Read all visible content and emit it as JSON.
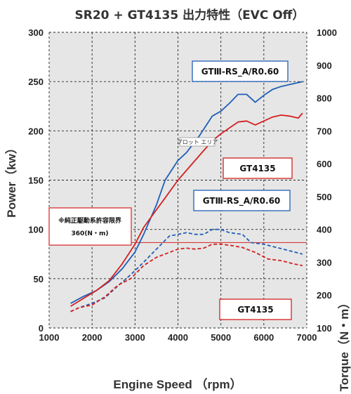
{
  "chart_data": {
    "type": "line",
    "title": "SR20 + GT4135 出力特性（EVC Off）",
    "xlabel": "Engine Speed （rpm）",
    "ylabel": "Power（kw）",
    "y2label": "Torque（N・m）",
    "xlim": [
      1000,
      7000
    ],
    "ylim": [
      0,
      300
    ],
    "y2lim": [
      100,
      1000
    ],
    "xticks": [
      "1000",
      "2000",
      "3000",
      "4000",
      "5000",
      "6000",
      "7000"
    ],
    "yticks": [
      "0",
      "50",
      "100",
      "150",
      "200",
      "250",
      "300"
    ],
    "y2ticks": [
      "100",
      "200",
      "300",
      "400",
      "500",
      "600",
      "700",
      "800",
      "900",
      "1000"
    ],
    "grid": true,
    "series": [
      {
        "name": "GTⅢ-RS_A/R0.60",
        "measure": "power",
        "axis": "left",
        "color": "#1f5fb8",
        "dash": false,
        "x": [
          1500,
          1800,
          2100,
          2400,
          2700,
          3000,
          3200,
          3500,
          3700,
          4000,
          4200,
          4500,
          4800,
          5000,
          5200,
          5400,
          5600,
          5800,
          6000,
          6200,
          6400,
          6600,
          6900
        ],
        "y": [
          25,
          32,
          38,
          47,
          60,
          77,
          95,
          125,
          150,
          170,
          178,
          195,
          215,
          220,
          228,
          237,
          237,
          229,
          236,
          242,
          245,
          247,
          250
        ]
      },
      {
        "name": "GT4135",
        "measure": "power",
        "axis": "left",
        "color": "#d42020",
        "dash": false,
        "x": [
          1500,
          1800,
          2100,
          2400,
          2700,
          3000,
          3200,
          3500,
          3700,
          4000,
          4200,
          4500,
          4800,
          5000,
          5200,
          5400,
          5600,
          5800,
          6000,
          6200,
          6400,
          6600,
          6800,
          6900
        ],
        "y": [
          22,
          30,
          38,
          48,
          65,
          85,
          102,
          120,
          132,
          150,
          160,
          175,
          190,
          197,
          203,
          209,
          210,
          206,
          210,
          214,
          216,
          215,
          213,
          218
        ]
      },
      {
        "name": "GTⅢ-RS_A/R0.60",
        "measure": "torque",
        "axis": "right",
        "color": "#1f5fb8",
        "dash": true,
        "x": [
          1500,
          1700,
          2000,
          2300,
          2600,
          2900,
          3200,
          3500,
          3800,
          4000,
          4200,
          4400,
          4600,
          4800,
          5000,
          5200,
          5500,
          5700,
          6000,
          6300,
          6600,
          6900
        ],
        "y": [
          150,
          162,
          175,
          192,
          228,
          262,
          300,
          340,
          380,
          385,
          390,
          385,
          385,
          400,
          400,
          390,
          385,
          360,
          355,
          345,
          335,
          325
        ]
      },
      {
        "name": "GT4135",
        "measure": "torque",
        "axis": "right",
        "color": "#d42020",
        "dash": true,
        "x": [
          1500,
          1700,
          2000,
          2300,
          2600,
          2900,
          3200,
          3500,
          3800,
          4000,
          4200,
          4400,
          4600,
          4800,
          5000,
          5300,
          5500,
          5800,
          6100,
          6400,
          6700,
          6900
        ],
        "y": [
          150,
          162,
          170,
          195,
          230,
          250,
          290,
          315,
          330,
          340,
          343,
          340,
          343,
          355,
          355,
          350,
          345,
          330,
          310,
          305,
          295,
          290
        ]
      }
    ],
    "reference_line": {
      "label": "※純正駆動系許容限界",
      "value_label": "360(N・m)",
      "axis": "right",
      "value": 360,
      "color": "#d42020"
    },
    "annotations": [
      {
        "text": "GTⅢ-RS_A/R0.60",
        "border": "#1f5fb8"
      },
      {
        "text": "GT4135",
        "border": "#d42020"
      },
      {
        "text": "GTⅢ-RS_A/R0.60",
        "border": "#1f5fb8"
      },
      {
        "text": "GT4135",
        "border": "#d42020"
      },
      {
        "text": "プロット エリア",
        "border": "#999999"
      }
    ]
  }
}
